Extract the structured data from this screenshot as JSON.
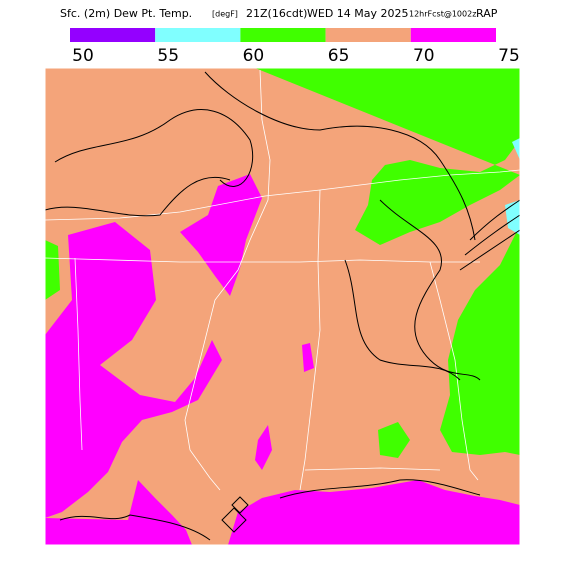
{
  "title_parts": [
    "Sfc. (2m) Dew Pt. Temp.",
    "[degF]",
    "21Z(16cdt)",
    "WED 14 May 2025",
    "12hrFcst@1002z",
    "RAP"
  ],
  "colorbar": {
    "ticks": [
      50,
      55,
      60,
      65,
      70,
      75
    ],
    "colors": [
      "#9400ff",
      "#80ffff",
      "#40ff00",
      "#f4a47a",
      "#ff00ff"
    ]
  }
}
